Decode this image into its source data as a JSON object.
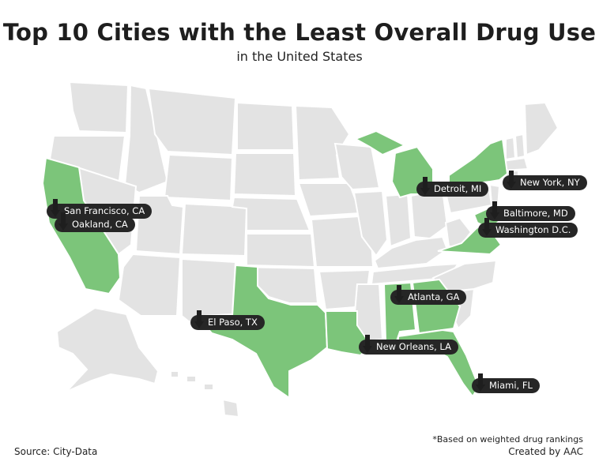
{
  "title": "Top 10 Cities with the Least Overall Drug Use",
  "subtitle": "in the United States",
  "colors": {
    "highlight": "#7cc57a",
    "state": "#e3e3e3",
    "label_bg": "#262626"
  },
  "highlighted_states": [
    "California",
    "Texas",
    "Louisiana",
    "Alabama",
    "Florida",
    "Georgia",
    "Michigan",
    "New York",
    "Maryland",
    "Virginia"
  ],
  "cities": [
    {
      "name": "San Francisco, CA"
    },
    {
      "name": "Oakland, CA"
    },
    {
      "name": "El Paso, TX"
    },
    {
      "name": "New Orleans, LA"
    },
    {
      "name": "Atlanta, GA"
    },
    {
      "name": "Miami, FL"
    },
    {
      "name": "Detroit, MI"
    },
    {
      "name": "New York, NY"
    },
    {
      "name": "Baltimore, MD"
    },
    {
      "name": "Washington D.C."
    }
  ],
  "footer": {
    "source": "Source: City-Data",
    "note": "*Based on weighted drug rankings",
    "credit": "Created by AAC"
  }
}
